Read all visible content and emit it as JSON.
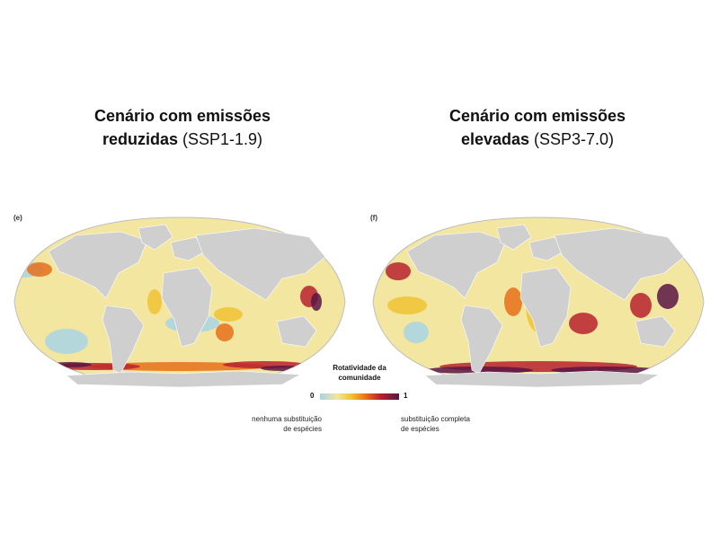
{
  "panels": [
    {
      "letter": "(e)",
      "title_line1": "Cenário com emissões",
      "title_bold2": "reduzidas",
      "title_plain2": " (SSP1-1.9)"
    },
    {
      "letter": "(f)",
      "title_line1": "Cenário com emissões",
      "title_bold2": "elevadas",
      "title_plain2": " (SSP3-7.0)"
    }
  ],
  "legend": {
    "title_line1": "Rotatividade da",
    "title_line2": "comunidade",
    "min": "0",
    "max": "1",
    "min_note_line1": "nenhuma substituição",
    "min_note_line2": "de espécies",
    "max_note_line1": "substituição completa",
    "max_note_line2": "de espécies",
    "colors": [
      "#a9d3e5",
      "#f2e6a0",
      "#f1c232",
      "#e8701a",
      "#b8222e",
      "#5b1444"
    ]
  },
  "map_colors": {
    "land": "#cfcfcf",
    "no_data": "#ffffff",
    "outline": "#bdbdbd"
  }
}
